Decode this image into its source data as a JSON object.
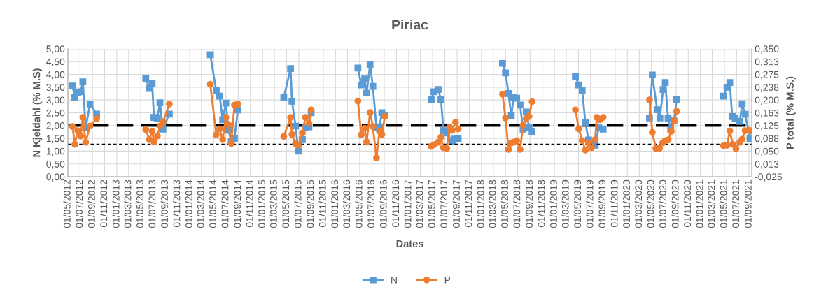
{
  "chart_data": {
    "type": "line",
    "title": "Piriac",
    "xlabel": "Dates",
    "ylabel": "N Kjeldahl (% M.S)",
    "y2label": "P total (% M.S.)",
    "xlim": [
      "2012-05-01",
      "2021-09-15"
    ],
    "xticks": [
      {
        "value": "2012-05-01",
        "label": "01/05/2012"
      },
      {
        "value": "2012-07-01",
        "label": "01/07/2012"
      },
      {
        "value": "2012-09-01",
        "label": "01/09/2012"
      },
      {
        "value": "2012-11-01",
        "label": "01/11/2012"
      },
      {
        "value": "2013-01-01",
        "label": "01/01/2013"
      },
      {
        "value": "2013-03-01",
        "label": "01/03/2013"
      },
      {
        "value": "2013-05-01",
        "label": "01/05/2013"
      },
      {
        "value": "2013-07-01",
        "label": "01/07/2013"
      },
      {
        "value": "2013-09-01",
        "label": "01/09/2013"
      },
      {
        "value": "2013-11-01",
        "label": "01/11/2013"
      },
      {
        "value": "2014-01-01",
        "label": "01/01/2014"
      },
      {
        "value": "2014-03-01",
        "label": "01/03/2014"
      },
      {
        "value": "2014-05-01",
        "label": "01/05/2014"
      },
      {
        "value": "2014-07-01",
        "label": "01/07/2014"
      },
      {
        "value": "2014-09-01",
        "label": "01/09/2014"
      },
      {
        "value": "2014-11-01",
        "label": "01/11/2014"
      },
      {
        "value": "2015-01-01",
        "label": "01/01/2015"
      },
      {
        "value": "2015-03-01",
        "label": "01/03/2015"
      },
      {
        "value": "2015-05-01",
        "label": "01/05/2015"
      },
      {
        "value": "2015-07-01",
        "label": "01/07/2015"
      },
      {
        "value": "2015-09-01",
        "label": "01/09/2015"
      },
      {
        "value": "2015-11-01",
        "label": "01/11/2015"
      },
      {
        "value": "2016-01-01",
        "label": "01/01/2016"
      },
      {
        "value": "2016-03-01",
        "label": "01/03/2016"
      },
      {
        "value": "2016-05-01",
        "label": "01/05/2016"
      },
      {
        "value": "2016-07-01",
        "label": "01/07/2016"
      },
      {
        "value": "2016-09-01",
        "label": "01/09/2016"
      },
      {
        "value": "2016-11-01",
        "label": "01/11/2016"
      },
      {
        "value": "2017-01-01",
        "label": "01/01/2017"
      },
      {
        "value": "2017-03-01",
        "label": "01/03/2017"
      },
      {
        "value": "2017-05-01",
        "label": "01/05/2017"
      },
      {
        "value": "2017-07-01",
        "label": "01/07/2017"
      },
      {
        "value": "2017-09-01",
        "label": "01/09/2017"
      },
      {
        "value": "2017-11-01",
        "label": "01/11/2017"
      },
      {
        "value": "2018-01-01",
        "label": "01/01/2018"
      },
      {
        "value": "2018-03-01",
        "label": "01/03/2018"
      },
      {
        "value": "2018-05-01",
        "label": "01/05/2018"
      },
      {
        "value": "2018-07-01",
        "label": "01/07/2018"
      },
      {
        "value": "2018-09-01",
        "label": "01/09/2018"
      },
      {
        "value": "2018-11-01",
        "label": "01/11/2018"
      },
      {
        "value": "2019-01-01",
        "label": "01/01/2019"
      },
      {
        "value": "2019-03-01",
        "label": "01/03/2019"
      },
      {
        "value": "2019-05-01",
        "label": "01/05/2019"
      },
      {
        "value": "2019-07-01",
        "label": "01/07/2019"
      },
      {
        "value": "2019-09-01",
        "label": "01/09/2019"
      },
      {
        "value": "2019-11-01",
        "label": "01/11/2019"
      },
      {
        "value": "2020-01-01",
        "label": "01/01/2020"
      },
      {
        "value": "2020-03-01",
        "label": "01/03/2020"
      },
      {
        "value": "2020-05-01",
        "label": "01/05/2020"
      },
      {
        "value": "2020-07-01",
        "label": "01/07/2020"
      },
      {
        "value": "2020-09-01",
        "label": "01/09/2020"
      },
      {
        "value": "2020-11-01",
        "label": "01/11/2020"
      },
      {
        "value": "2021-01-01",
        "label": "01/01/2021"
      },
      {
        "value": "2021-03-01",
        "label": "01/03/2021"
      },
      {
        "value": "2021-05-01",
        "label": "01/05/2021"
      },
      {
        "value": "2021-07-01",
        "label": "01/07/2021"
      },
      {
        "value": "2021-09-01",
        "label": "01/09/2021"
      }
    ],
    "ylim": [
      0,
      5
    ],
    "yticks": [
      {
        "value": 0,
        "label": "0,00"
      },
      {
        "value": 0.5,
        "label": "0,50"
      },
      {
        "value": 1,
        "label": "1,00"
      },
      {
        "value": 1.5,
        "label": "1,50"
      },
      {
        "value": 2,
        "label": "2,00"
      },
      {
        "value": 2.5,
        "label": "2,50"
      },
      {
        "value": 3,
        "label": "3,00"
      },
      {
        "value": 3.5,
        "label": "3,50"
      },
      {
        "value": 4,
        "label": "4,00"
      },
      {
        "value": 4.5,
        "label": "4,50"
      },
      {
        "value": 5,
        "label": "5,00"
      }
    ],
    "y2lim": [
      -0.025,
      0.35
    ],
    "y2ticks": [
      {
        "value": -0.025,
        "label": "-0,025"
      },
      {
        "value": 0.0125,
        "label": "0,013"
      },
      {
        "value": 0.05,
        "label": "0,050"
      },
      {
        "value": 0.0875,
        "label": "0,088"
      },
      {
        "value": 0.125,
        "label": "0,125"
      },
      {
        "value": 0.1625,
        "label": "0,163"
      },
      {
        "value": 0.2,
        "label": "0,200"
      },
      {
        "value": 0.2375,
        "label": "0,238"
      },
      {
        "value": 0.275,
        "label": "0,275"
      },
      {
        "value": 0.3125,
        "label": "0,313"
      },
      {
        "value": 0.35,
        "label": "0,350"
      }
    ],
    "grid": true,
    "legend": "bottom",
    "line_style": "solid",
    "ref_lines": [
      {
        "axis": "y",
        "value": 2.0,
        "line_style": "dashed",
        "color": "#000000"
      },
      {
        "axis": "y2",
        "value": 0.07,
        "line_style": "dotted",
        "color": "#000000"
      }
    ],
    "series": [
      {
        "name": "N",
        "color": "#5b9bd5",
        "marker": "square",
        "x": [
          "2012-05-24",
          "2012-06-05",
          "2012-06-19",
          "2012-07-04",
          "2012-07-15",
          "2012-07-29",
          "2012-08-20",
          "2012-09-22",
          "2013-01-01",
          "2013-05-26",
          "2013-06-13",
          "2013-06-27",
          "2013-07-06",
          "2013-07-23",
          "2013-08-05",
          "2013-08-20",
          "2013-09-21",
          "2014-01-01",
          "2014-04-14",
          "2014-05-14",
          "2014-05-31",
          "2014-06-15",
          "2014-07-01",
          "2014-07-14",
          "2014-07-28",
          "2014-08-13",
          "2014-08-30",
          "2015-01-01",
          "2015-04-17",
          "2015-05-21",
          "2015-05-28",
          "2015-06-15",
          "2015-06-29",
          "2015-07-19",
          "2015-08-03",
          "2015-08-21",
          "2015-09-01",
          "2016-01-01",
          "2016-04-22",
          "2016-05-09",
          "2016-05-26",
          "2016-06-05",
          "2016-06-22",
          "2016-07-06",
          "2016-07-24",
          "2016-08-08",
          "2016-08-20",
          "2016-09-04",
          "2017-01-01",
          "2017-04-24",
          "2017-05-08",
          "2017-05-29",
          "2017-06-12",
          "2017-06-24",
          "2017-07-11",
          "2017-08-07",
          "2017-08-19",
          "2017-09-06",
          "2018-01-01",
          "2018-04-16",
          "2018-05-01",
          "2018-05-16",
          "2018-05-30",
          "2018-06-11",
          "2018-06-26",
          "2018-07-13",
          "2018-07-28",
          "2018-08-13",
          "2018-08-27",
          "2018-09-11",
          "2019-01-01",
          "2019-04-16",
          "2019-05-03",
          "2019-05-20",
          "2019-06-05",
          "2019-06-21",
          "2019-07-06",
          "2019-07-24",
          "2019-08-11",
          "2019-09-02",
          "2020-01-01",
          "2020-04-21",
          "2020-05-05",
          "2020-05-29",
          "2020-06-12",
          "2020-06-28",
          "2020-07-09",
          "2020-07-23",
          "2020-08-05",
          "2020-08-21",
          "2020-09-04",
          "2021-01-01",
          "2021-04-26",
          "2021-05-14",
          "2021-05-28",
          "2021-06-09",
          "2021-06-24",
          "2021-07-17",
          "2021-07-29",
          "2021-08-13",
          "2021-09-06"
        ],
        "values": [
          3.55,
          3.09,
          3.29,
          3.32,
          3.71,
          1.91,
          2.84,
          2.45,
          null,
          3.84,
          3.45,
          3.65,
          2.32,
          2.29,
          2.89,
          1.86,
          2.45,
          null,
          4.77,
          3.36,
          3.15,
          2.23,
          2.88,
          1.82,
          1.36,
          1.5,
          2.61,
          null,
          3.09,
          4.23,
          2.95,
          1.98,
          1.0,
          1.45,
          1.91,
          1.95,
          2.5,
          null,
          4.25,
          3.59,
          3.82,
          3.27,
          4.39,
          3.53,
          1.91,
          1.95,
          2.5,
          2.41,
          null,
          3.02,
          3.32,
          3.41,
          3.02,
          1.8,
          1.71,
          1.36,
          1.47,
          1.5,
          null,
          4.43,
          4.06,
          3.25,
          2.38,
          3.11,
          3.07,
          2.8,
          1.86,
          2.53,
          1.93,
          1.77,
          null,
          3.93,
          3.59,
          3.36,
          2.11,
          1.44,
          1.27,
          1.23,
          1.91,
          1.86,
          null,
          2.3,
          3.98,
          2.62,
          2.3,
          3.41,
          3.68,
          2.27,
          1.86,
          2.18,
          3.02,
          null,
          3.15,
          3.5,
          3.68,
          2.35,
          2.29,
          2.16,
          2.85,
          2.44,
          1.5
        ]
      },
      {
        "name": "P",
        "color": "#ed7d31",
        "marker": "circle",
        "axis": "y2",
        "x": [
          "2012-05-24",
          "2012-06-05",
          "2012-06-19",
          "2012-07-04",
          "2012-07-15",
          "2012-07-29",
          "2012-08-20",
          "2012-09-22",
          "2013-01-01",
          "2013-05-26",
          "2013-06-13",
          "2013-06-27",
          "2013-07-06",
          "2013-07-23",
          "2013-08-05",
          "2013-08-20",
          "2013-09-21",
          "2014-01-01",
          "2014-04-14",
          "2014-05-14",
          "2014-05-31",
          "2014-06-15",
          "2014-07-01",
          "2014-07-14",
          "2014-07-28",
          "2014-08-13",
          "2014-08-30",
          "2015-01-01",
          "2015-04-17",
          "2015-05-21",
          "2015-05-28",
          "2015-06-15",
          "2015-06-29",
          "2015-07-19",
          "2015-08-03",
          "2015-08-21",
          "2015-09-01",
          "2016-01-01",
          "2016-04-22",
          "2016-05-09",
          "2016-05-26",
          "2016-06-05",
          "2016-06-22",
          "2016-07-06",
          "2016-07-24",
          "2016-08-08",
          "2016-08-20",
          "2016-09-04",
          "2017-01-01",
          "2017-04-24",
          "2017-05-08",
          "2017-05-29",
          "2017-06-12",
          "2017-06-24",
          "2017-07-11",
          "2017-07-25",
          "2017-08-07",
          "2017-08-24",
          "2017-09-06",
          "2018-01-01",
          "2018-04-16",
          "2018-05-01",
          "2018-05-16",
          "2018-05-30",
          "2018-06-11",
          "2018-06-26",
          "2018-07-13",
          "2018-07-28",
          "2018-08-13",
          "2018-08-27",
          "2018-09-11",
          "2019-01-01",
          "2019-04-16",
          "2019-05-03",
          "2019-05-20",
          "2019-06-05",
          "2019-06-21",
          "2019-07-06",
          "2019-07-24",
          "2019-08-01",
          "2019-08-16",
          "2019-09-02",
          "2020-01-01",
          "2020-04-21",
          "2020-05-05",
          "2020-05-23",
          "2020-06-10",
          "2020-06-26",
          "2020-07-09",
          "2020-07-24",
          "2020-08-08",
          "2020-08-22",
          "2020-09-04",
          "2021-01-01",
          "2021-04-26",
          "2021-05-14",
          "2021-05-28",
          "2021-06-12",
          "2021-06-28",
          "2021-07-17",
          "2021-07-29",
          "2021-08-13",
          "2021-09-02",
          "2021-09-12"
        ],
        "values": [
          0.122,
          0.07,
          0.11,
          0.094,
          0.149,
          0.076,
          0.124,
          0.145,
          null,
          0.113,
          0.084,
          0.108,
          0.077,
          0.094,
          0.124,
          0.135,
          0.188,
          null,
          0.246,
          0.098,
          0.115,
          0.084,
          0.149,
          0.128,
          0.072,
          0.185,
          0.188,
          null,
          0.093,
          0.149,
          0.099,
          0.072,
          0.067,
          0.103,
          0.149,
          0.132,
          0.171,
          null,
          0.197,
          0.098,
          0.117,
          0.077,
          0.163,
          0.122,
          0.03,
          0.108,
          0.099,
          0.152,
          null,
          0.064,
          0.069,
          0.076,
          0.091,
          0.06,
          0.058,
          0.12,
          0.111,
          0.135,
          0.115,
          null,
          0.217,
          0.147,
          0.055,
          0.074,
          0.076,
          0.081,
          0.055,
          0.126,
          0.145,
          0.152,
          0.195,
          null,
          0.171,
          0.115,
          0.081,
          0.053,
          0.074,
          0.06,
          0.084,
          0.149,
          0.142,
          0.149,
          null,
          0.2,
          0.105,
          0.058,
          0.058,
          0.074,
          0.081,
          0.083,
          0.108,
          0.139,
          0.167,
          null,
          0.066,
          0.067,
          0.109,
          0.07,
          0.057,
          0.076,
          0.085,
          0.11,
          0.111,
          0.109
        ]
      }
    ]
  }
}
